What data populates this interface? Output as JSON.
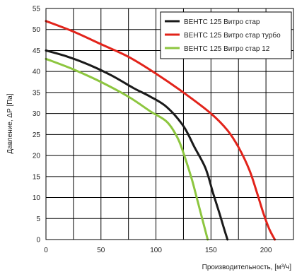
{
  "chart_data": {
    "type": "line",
    "title": "",
    "xlabel": "Производительность, [м³/ч]",
    "ylabel": "Давление, ΔP [Па]",
    "xlim": [
      0,
      225
    ],
    "ylim": [
      0,
      55
    ],
    "xticks": [
      0,
      50,
      100,
      150,
      200
    ],
    "yticks": [
      0,
      5,
      10,
      15,
      20,
      25,
      30,
      35,
      40,
      45,
      50,
      55
    ],
    "x_minor_gridlines": [
      25,
      75,
      125,
      175
    ],
    "grid": true,
    "legend": "top-right",
    "series": [
      {
        "name": "ВЕНТС 125 Витро стар",
        "color": "#1a1a1a",
        "x": [
          0,
          20,
          40,
          60,
          80,
          95,
          110,
          125,
          135,
          145,
          152,
          158,
          162,
          165
        ],
        "y": [
          45,
          43.5,
          41.5,
          39,
          36,
          34,
          31.5,
          27,
          22,
          17,
          11,
          6,
          2.5,
          0
        ]
      },
      {
        "name": "ВЕНТС 125 Витро стар турбо",
        "color": "#e2231a",
        "x": [
          0,
          25,
          50,
          75,
          100,
          125,
          150,
          165,
          175,
          185,
          192,
          198,
          203,
          208
        ],
        "y": [
          52,
          49.5,
          46.5,
          43.5,
          39.5,
          35,
          30,
          26,
          22,
          16.5,
          11,
          6,
          2.5,
          0
        ]
      },
      {
        "name": "ВЕНТС 125 Витро стар 12",
        "color": "#8dc63f",
        "x": [
          0,
          25,
          50,
          75,
          95,
          110,
          120,
          127,
          133,
          138,
          142,
          145,
          147
        ],
        "y": [
          43,
          40.5,
          37.5,
          34,
          30.5,
          28,
          24,
          19,
          14,
          9,
          5,
          2,
          0
        ]
      }
    ]
  }
}
